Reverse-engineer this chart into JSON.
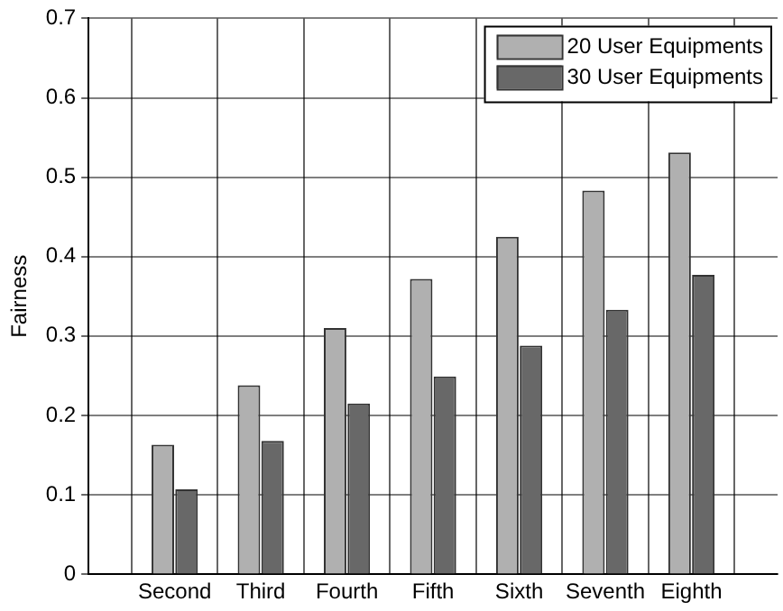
{
  "chart_data": {
    "type": "bar",
    "ylabel": "Fairness",
    "categories": [
      null,
      "Second",
      "Third",
      "Fourth",
      "Fifth",
      "Sixth",
      "Seventh",
      "Eighth",
      null
    ],
    "series": [
      {
        "name": "20 User Equipments",
        "color": "#b0b0b0",
        "values": [
          null,
          0.163,
          0.238,
          0.31,
          0.372,
          0.425,
          0.483,
          0.531,
          null
        ]
      },
      {
        "name": "30 User Equipments",
        "color": "#686868",
        "values": [
          null,
          0.107,
          0.168,
          0.215,
          0.249,
          0.288,
          0.333,
          0.377,
          null
        ]
      }
    ],
    "ylim": [
      0,
      0.7
    ],
    "yticks": [
      0,
      0.1,
      0.2,
      0.3,
      0.4,
      0.5,
      0.6,
      0.7
    ],
    "grid": true,
    "legend": "top right"
  }
}
